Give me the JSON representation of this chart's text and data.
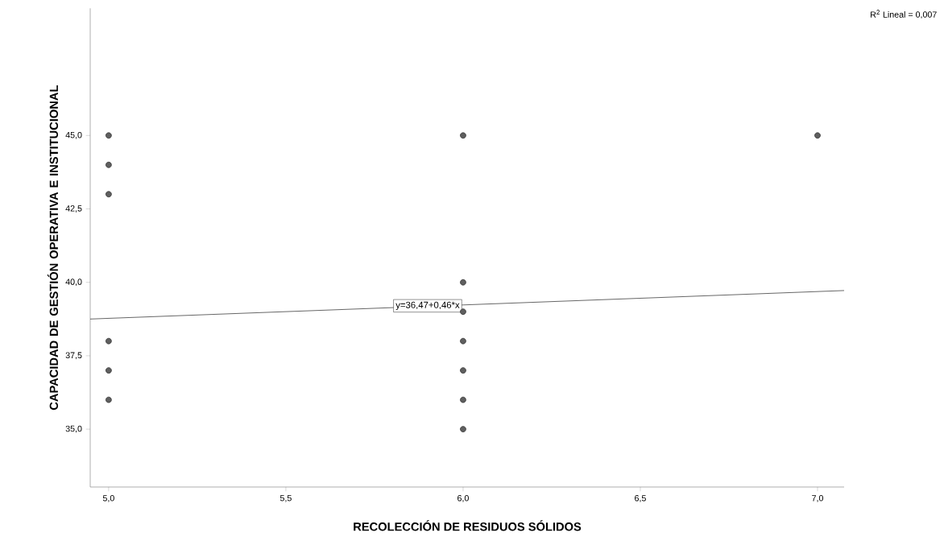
{
  "chart_data": {
    "type": "scatter",
    "xlabel": "RECOLECCIÓN DE RESIDUOS SÓLIDOS",
    "ylabel": "CAPACIDAD DE GESTIÓN OPERATIVA E INSTITUCIONAL",
    "xlim": [
      4.948,
      7.075
    ],
    "ylim": [
      33.03,
      49.33
    ],
    "xticks": [
      {
        "value": 5,
        "label": "5,0"
      },
      {
        "value": 5.5,
        "label": "5,5"
      },
      {
        "value": 6,
        "label": "6,0"
      },
      {
        "value": 6.5,
        "label": "6,5"
      },
      {
        "value": 7,
        "label": "7,0"
      }
    ],
    "yticks": [
      {
        "value": 35,
        "label": "35,0"
      },
      {
        "value": 37.5,
        "label": "37,5"
      },
      {
        "value": 40,
        "label": "40,0"
      },
      {
        "value": 42.5,
        "label": "42,5"
      },
      {
        "value": 45,
        "label": "45,0"
      }
    ],
    "grid": false,
    "series": [
      {
        "marker": "circle",
        "color": "#5f5f5f",
        "x": [
          5,
          5,
          5,
          5,
          5,
          5,
          6,
          6,
          6,
          6,
          6,
          6,
          6,
          7
        ],
        "values": [
          45,
          44,
          43,
          38,
          37,
          36,
          45,
          40,
          39,
          38,
          37,
          36,
          35,
          45
        ]
      },
      {
        "type": "line",
        "marker": "none",
        "line_style": "solid",
        "color": "#404040",
        "x": [
          4.948,
          7.075
        ],
        "values": [
          38.75,
          39.72
        ]
      }
    ],
    "annotations": [
      {
        "text": "y=36,47+0,46*x",
        "x": 5.9,
        "y": 39.2
      },
      "R$^{2}$ Lineal = 0,007"
    ]
  }
}
